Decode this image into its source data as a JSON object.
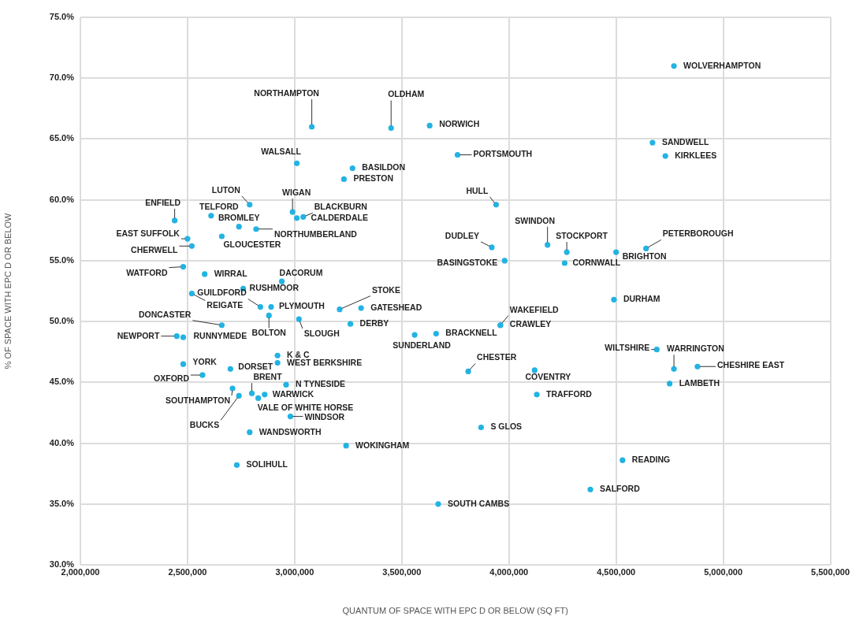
{
  "chart_data": {
    "type": "scatter",
    "xlabel": "QUANTUM OF SPACE WITH EPC D OR BELOW (SQ FT)",
    "ylabel": "% OF SPACE WITH EPC D OR BELOW",
    "xlim": [
      2000000,
      5500000
    ],
    "ylim": [
      30,
      75
    ],
    "xticks": [
      {
        "value": 2000000,
        "label": "2,000,000"
      },
      {
        "value": 2500000,
        "label": "2,500,000"
      },
      {
        "value": 3000000,
        "label": "3,000,000"
      },
      {
        "value": 3500000,
        "label": "3,500,000"
      },
      {
        "value": 4000000,
        "label": "4,000,000"
      },
      {
        "value": 4500000,
        "label": "4,500,000"
      },
      {
        "value": 5000000,
        "label": "5,000,000"
      },
      {
        "value": 5500000,
        "label": "5,500,000"
      }
    ],
    "yticks": [
      {
        "value": 30,
        "label": "30.0%"
      },
      {
        "value": 35,
        "label": "35.0%"
      },
      {
        "value": 40,
        "label": "40.0%"
      },
      {
        "value": 45,
        "label": "45.0%"
      },
      {
        "value": 50,
        "label": "50.0%"
      },
      {
        "value": 55,
        "label": "55.0%"
      },
      {
        "value": 60,
        "label": "60.0%"
      },
      {
        "value": 65,
        "label": "65.0%"
      },
      {
        "value": 70,
        "label": "70.0%"
      },
      {
        "value": 75,
        "label": "75.0%"
      }
    ],
    "grid": true,
    "legend": false,
    "marker": "circle",
    "series": [
      {
        "color": "#22b3e3",
        "x": [
          4770000,
          3080000,
          3450000,
          3630000,
          4670000,
          4730000,
          3010000,
          3270000,
          3230000,
          3760000,
          2790000,
          2990000,
          3940000,
          2440000,
          3040000,
          2610000,
          3010000,
          2740000,
          4180000,
          4640000,
          2500000,
          2820000,
          3920000,
          4270000,
          2520000,
          2660000,
          4500000,
          3980000,
          4260000,
          2480000,
          2580000,
          2940000,
          3210000,
          2840000,
          2760000,
          4490000,
          2520000,
          2890000,
          3310000,
          2660000,
          3960000,
          3960000,
          2880000,
          3260000,
          3020000,
          3660000,
          3560000,
          2450000,
          2480000,
          2920000,
          4690000,
          4770000,
          3810000,
          2920000,
          2480000,
          2700000,
          4880000,
          2570000,
          4120000,
          4750000,
          2960000,
          2800000,
          4130000,
          2710000,
          2860000,
          2830000,
          2980000,
          3870000,
          2740000,
          2790000,
          3240000,
          4530000,
          2730000,
          4380000,
          3670000
        ],
        "values": [
          71.0,
          66.0,
          65.9,
          66.1,
          64.7,
          63.6,
          63.0,
          62.6,
          61.7,
          63.7,
          59.6,
          59.0,
          59.6,
          58.3,
          58.6,
          58.7,
          58.5,
          57.8,
          56.3,
          56.0,
          56.8,
          57.6,
          56.1,
          55.7,
          56.2,
          57.0,
          55.7,
          55.0,
          54.8,
          54.5,
          53.9,
          53.3,
          51.0,
          51.2,
          52.7,
          51.8,
          52.3,
          51.2,
          51.1,
          49.7,
          49.7,
          49.7,
          50.5,
          49.8,
          50.2,
          49.0,
          48.9,
          48.8,
          48.7,
          47.2,
          47.7,
          46.1,
          45.9,
          46.6,
          46.5,
          46.1,
          46.3,
          45.6,
          46.0,
          44.9,
          44.8,
          44.1,
          44.0,
          44.5,
          44.0,
          43.7,
          42.2,
          41.3,
          43.9,
          40.9,
          39.8,
          38.6,
          38.2,
          36.2,
          35.0
        ]
      }
    ],
    "annotations": [
      {
        "text": "WOLVERHAMPTON",
        "x": 4770000,
        "y": 71.0
      },
      {
        "text": "NORTHAMPTON",
        "x": 3080000,
        "y": 66.0
      },
      {
        "text": "OLDHAM",
        "x": 3450000,
        "y": 65.9
      },
      {
        "text": "NORWICH",
        "x": 3630000,
        "y": 66.1
      },
      {
        "text": "SANDWELL",
        "x": 4670000,
        "y": 64.7
      },
      {
        "text": "KIRKLEES",
        "x": 4730000,
        "y": 63.6
      },
      {
        "text": "WALSALL",
        "x": 3010000,
        "y": 63.0
      },
      {
        "text": "BASILDON",
        "x": 3270000,
        "y": 62.6
      },
      {
        "text": "PRESTON",
        "x": 3230000,
        "y": 61.7
      },
      {
        "text": "PORTSMOUTH",
        "x": 3760000,
        "y": 63.7
      },
      {
        "text": "LUTON",
        "x": 2790000,
        "y": 59.6
      },
      {
        "text": "WIGAN",
        "x": 2990000,
        "y": 59.0
      },
      {
        "text": "HULL",
        "x": 3940000,
        "y": 59.6
      },
      {
        "text": "ENFIELD",
        "x": 2440000,
        "y": 58.3
      },
      {
        "text": "BLACKBURN",
        "x": 3040000,
        "y": 58.6
      },
      {
        "text": "TELFORD",
        "x": 2610000,
        "y": 58.7
      },
      {
        "text": "CALDERDALE",
        "x": 3010000,
        "y": 58.5
      },
      {
        "text": "BROMLEY",
        "x": 2740000,
        "y": 57.8
      },
      {
        "text": "SWINDON",
        "x": 4180000,
        "y": 56.3
      },
      {
        "text": "PETERBOROUGH",
        "x": 4640000,
        "y": 56.0
      },
      {
        "text": "EAST SUFFOLK",
        "x": 2500000,
        "y": 56.8
      },
      {
        "text": "NORTHUMBERLAND",
        "x": 2820000,
        "y": 57.6
      },
      {
        "text": "DUDLEY",
        "x": 3920000,
        "y": 56.1
      },
      {
        "text": "STOCKPORT",
        "x": 4270000,
        "y": 55.7
      },
      {
        "text": "CHERWELL",
        "x": 2520000,
        "y": 56.2
      },
      {
        "text": "GLOUCESTER",
        "x": 2660000,
        "y": 57.0
      },
      {
        "text": "BRIGHTON",
        "x": 4500000,
        "y": 55.7
      },
      {
        "text": "BASINGSTOKE",
        "x": 3980000,
        "y": 55.0
      },
      {
        "text": "CORNWALL",
        "x": 4260000,
        "y": 54.8
      },
      {
        "text": "WATFORD",
        "x": 2480000,
        "y": 54.5
      },
      {
        "text": "WIRRAL",
        "x": 2580000,
        "y": 53.9
      },
      {
        "text": "DACORUM",
        "x": 2940000,
        "y": 53.3
      },
      {
        "text": "STOKE",
        "x": 3210000,
        "y": 51.0
      },
      {
        "text": "GUILDFORD",
        "x": 2840000,
        "y": 51.2
      },
      {
        "text": "RUSHMOOR",
        "x": 2760000,
        "y": 52.7
      },
      {
        "text": "DURHAM",
        "x": 4490000,
        "y": 51.8
      },
      {
        "text": "REIGATE",
        "x": 2520000,
        "y": 52.3
      },
      {
        "text": "PLYMOUTH",
        "x": 2890000,
        "y": 51.2
      },
      {
        "text": "GATESHEAD",
        "x": 3310000,
        "y": 51.1
      },
      {
        "text": "DONCASTER",
        "x": 2660000,
        "y": 49.7
      },
      {
        "text": "WAKEFIELD",
        "x": 3960000,
        "y": 49.7
      },
      {
        "text": "CRAWLEY",
        "x": 3960000,
        "y": 49.7
      },
      {
        "text": "BOLTON",
        "x": 2880000,
        "y": 50.5
      },
      {
        "text": "DERBY",
        "x": 3260000,
        "y": 49.8
      },
      {
        "text": "SLOUGH",
        "x": 3020000,
        "y": 50.2
      },
      {
        "text": "BRACKNELL",
        "x": 3660000,
        "y": 49.0
      },
      {
        "text": "SUNDERLAND",
        "x": 3560000,
        "y": 48.9
      },
      {
        "text": "NEWPORT",
        "x": 2450000,
        "y": 48.8
      },
      {
        "text": "RUNNYMEDE",
        "x": 2480000,
        "y": 48.7
      },
      {
        "text": "K & C",
        "x": 2920000,
        "y": 47.2
      },
      {
        "text": "WILTSHIRE",
        "x": 4690000,
        "y": 47.7
      },
      {
        "text": "WARRINGTON",
        "x": 4770000,
        "y": 46.1
      },
      {
        "text": "CHESTER",
        "x": 3810000,
        "y": 45.9
      },
      {
        "text": "WEST BERKSHIRE",
        "x": 2920000,
        "y": 46.6
      },
      {
        "text": "YORK",
        "x": 2480000,
        "y": 46.5
      },
      {
        "text": "DORSET",
        "x": 2700000,
        "y": 46.1
      },
      {
        "text": "CHESHIRE EAST",
        "x": 4880000,
        "y": 46.3
      },
      {
        "text": "OXFORD",
        "x": 2570000,
        "y": 45.6
      },
      {
        "text": "COVENTRY",
        "x": 4120000,
        "y": 46.0
      },
      {
        "text": "LAMBETH",
        "x": 4750000,
        "y": 44.9
      },
      {
        "text": "N TYNESIDE",
        "x": 2960000,
        "y": 44.8
      },
      {
        "text": "BRENT",
        "x": 2800000,
        "y": 44.1
      },
      {
        "text": "TRAFFORD",
        "x": 4130000,
        "y": 44.0
      },
      {
        "text": "SOUTHAMPTON",
        "x": 2710000,
        "y": 44.5
      },
      {
        "text": "WARWICK",
        "x": 2860000,
        "y": 44.0
      },
      {
        "text": "VALE OF WHITE HORSE",
        "x": 2830000,
        "y": 43.7
      },
      {
        "text": "WINDSOR",
        "x": 2980000,
        "y": 42.2
      },
      {
        "text": "S GLOS",
        "x": 3870000,
        "y": 41.3
      },
      {
        "text": "BUCKS",
        "x": 2740000,
        "y": 43.9
      },
      {
        "text": "WANDSWORTH",
        "x": 2790000,
        "y": 40.9
      },
      {
        "text": "WOKINGHAM",
        "x": 3240000,
        "y": 39.8
      },
      {
        "text": "READING",
        "x": 4530000,
        "y": 38.6
      },
      {
        "text": "SOLIHULL",
        "x": 2730000,
        "y": 38.2
      },
      {
        "text": "SALFORD",
        "x": 4380000,
        "y": 36.2
      },
      {
        "text": "SOUTH CAMBS",
        "x": 3670000,
        "y": 35.0
      }
    ]
  }
}
